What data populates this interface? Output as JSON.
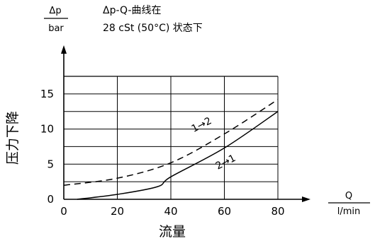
{
  "header": {
    "ylabel_unit_top": "Δp",
    "ylabel_unit_bottom": "bar",
    "title_line1": "Δp-Q-曲线在",
    "title_line2": "28 cSt (50°C) 状态下"
  },
  "chart_data": {
    "type": "line",
    "xlabel": "流量",
    "ylabel": "压力下降",
    "xunit_top": "Q",
    "xunit_bottom": "l/min",
    "xlim": [
      0,
      80
    ],
    "ylim": [
      0,
      17.5
    ],
    "xticks": [
      0,
      20,
      40,
      60,
      80
    ],
    "yticks": [
      0,
      5,
      10,
      15
    ],
    "grid": true,
    "series": [
      {
        "name": "1→2",
        "style": "dashed",
        "x": [
          0,
          20,
          40,
          60,
          80
        ],
        "y": [
          2.0,
          3.0,
          5.2,
          9.3,
          14.2
        ]
      },
      {
        "name": "2→1",
        "style": "solid",
        "x": [
          5,
          20,
          35,
          40,
          60,
          80
        ],
        "y": [
          0,
          0.7,
          1.8,
          3.2,
          7.3,
          12.5
        ]
      }
    ]
  }
}
